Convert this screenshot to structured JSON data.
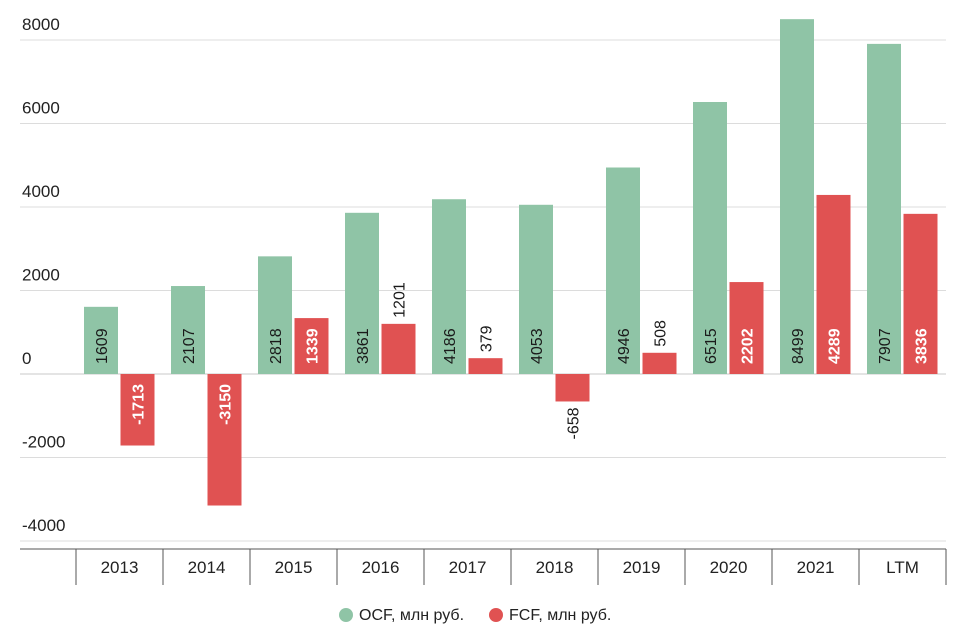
{
  "chart_data": {
    "type": "bar",
    "categories": [
      "2013",
      "2014",
      "2015",
      "2016",
      "2017",
      "2018",
      "2019",
      "2020",
      "2021",
      "LTM"
    ],
    "series": [
      {
        "name": "OCF, млн руб.",
        "color": "#8fc4a6",
        "label_color": "#1a1a1a",
        "label_weight": "normal",
        "values": [
          1609,
          2107,
          2818,
          3861,
          4186,
          4053,
          4946,
          6515,
          8499,
          7907
        ],
        "labels": [
          "1609",
          "2107",
          "2818",
          "3861",
          "4186",
          "4053",
          "4946",
          "6515",
          "8499",
          "7907"
        ]
      },
      {
        "name": "FCF, млн руб.",
        "color": "#e05252",
        "label_color": "#ffffff",
        "label_weight": "bold",
        "values": [
          -1713,
          -3150,
          1339,
          1201,
          379,
          -658,
          508,
          2202,
          4289,
          3836
        ],
        "labels": [
          "-1713",
          "-3150",
          "1339",
          "1201",
          "379",
          "-658",
          "508",
          "2202",
          "4289",
          "3836"
        ]
      }
    ],
    "y_ticks": [
      "8000",
      "6000",
      "4000",
      "2000",
      "0",
      "-2000",
      "-4000"
    ],
    "ylim": [
      -4000,
      8500
    ],
    "grid": true,
    "legend": "bottom-center",
    "title": "",
    "xlabel": "",
    "ylabel": ""
  }
}
